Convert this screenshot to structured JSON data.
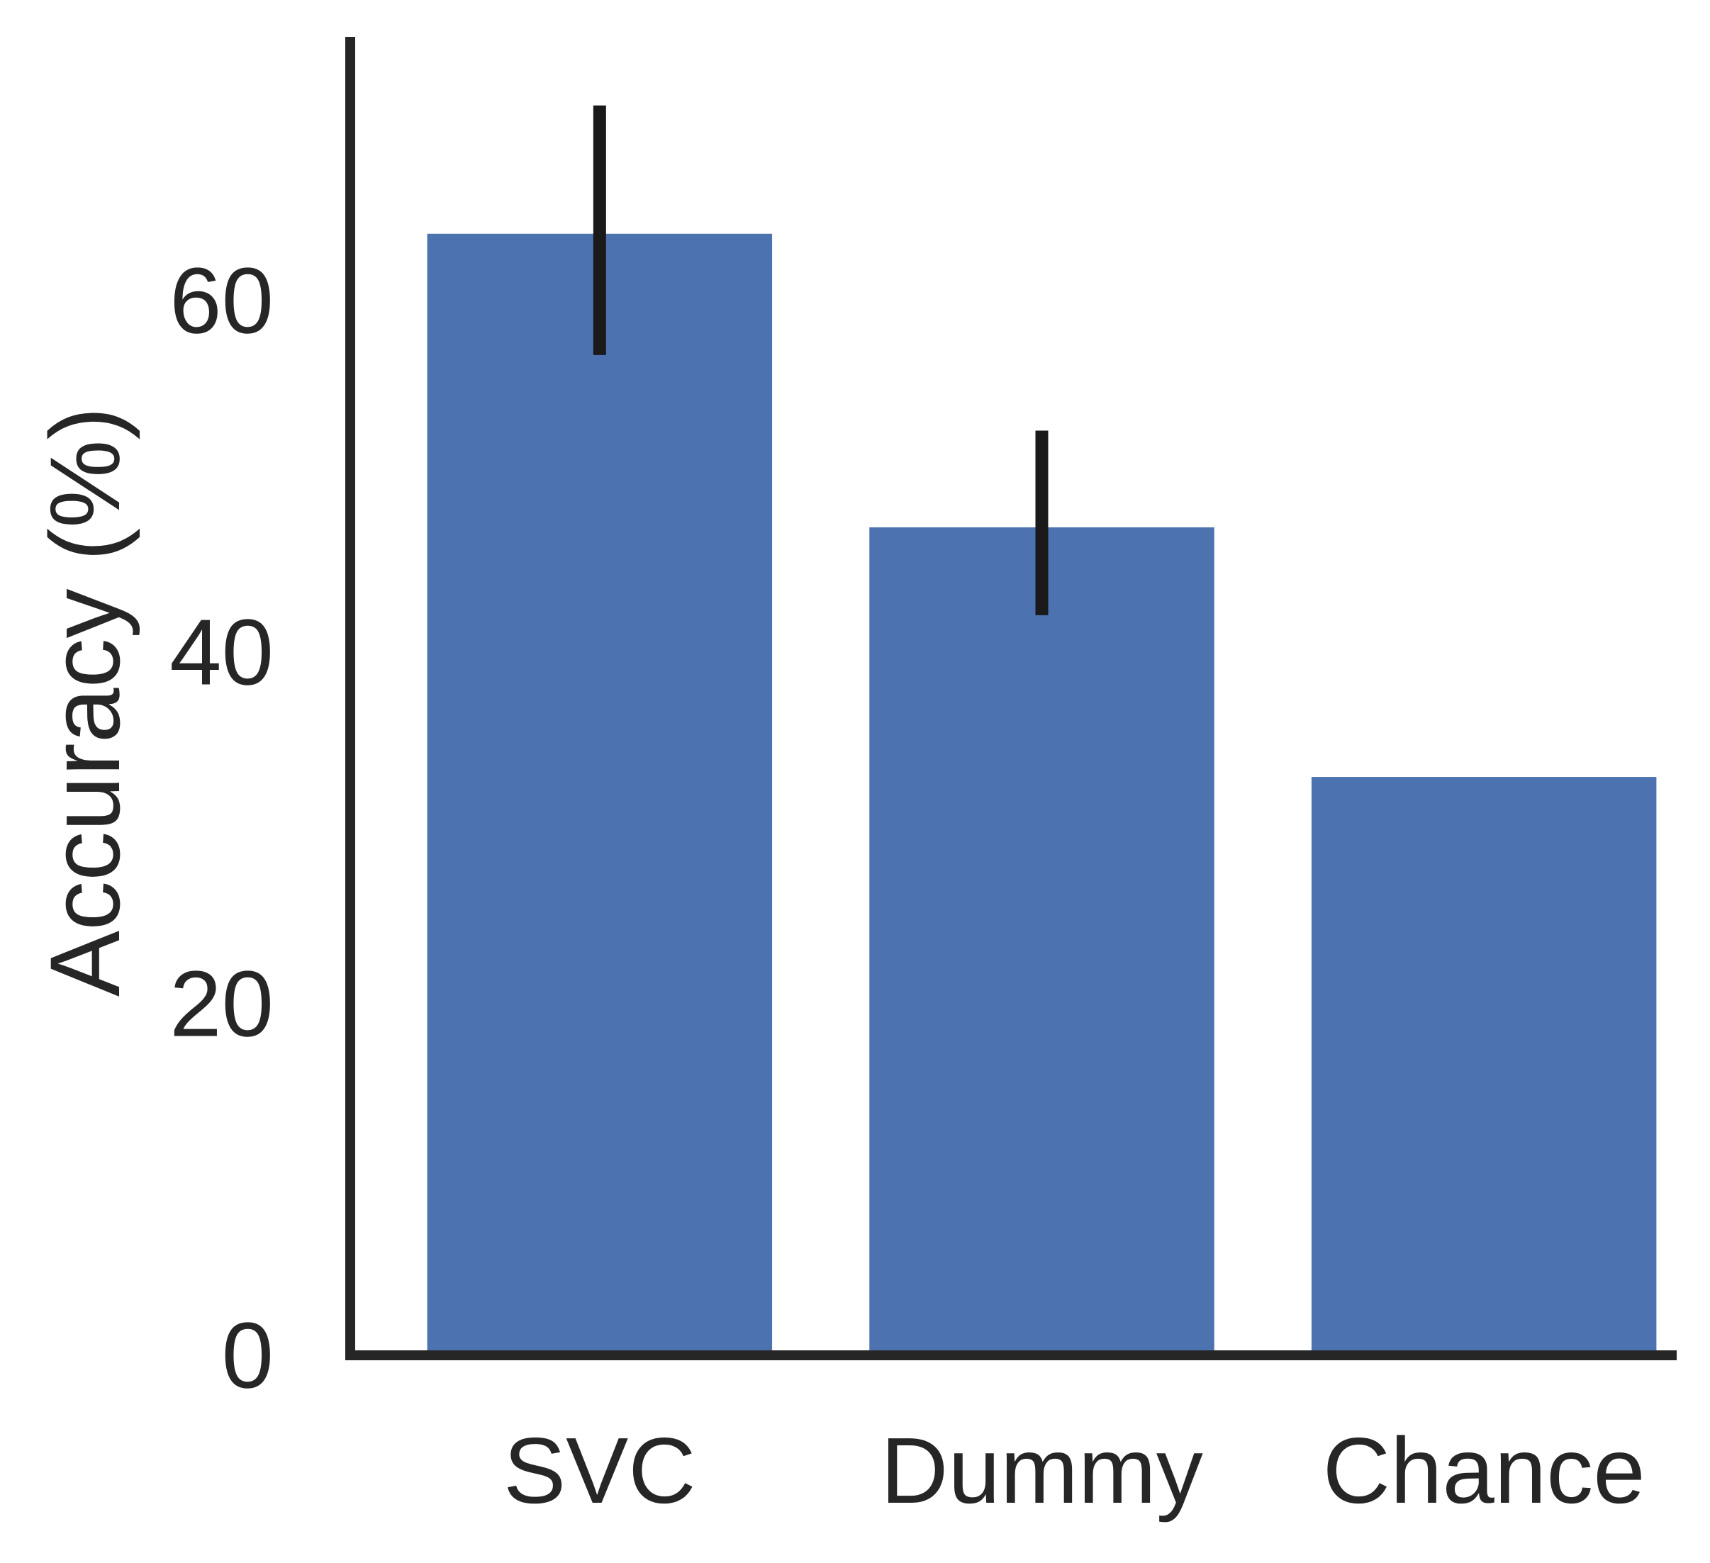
{
  "chart_data": {
    "type": "bar",
    "title": "",
    "xlabel": "",
    "ylabel": "Accuracy (%)",
    "categories": [
      "SVC",
      "Dummy",
      "Chance"
    ],
    "values": [
      63.8,
      47.1,
      32.9
    ],
    "error_bars": [
      [
        56.9,
        71.1
      ],
      [
        42.1,
        52.6
      ],
      null
    ],
    "ylim": [
      0,
      75
    ],
    "yticks": [
      0,
      20,
      40,
      60
    ],
    "ytick_labels": [
      "0",
      "20",
      "40",
      "60"
    ],
    "grid": false,
    "legend": "none",
    "colors": {
      "bar": "#4c72b0",
      "error_bar": "#1a1a1a",
      "axis": "#262626",
      "text": "#262626",
      "background": "#ffffff"
    }
  }
}
